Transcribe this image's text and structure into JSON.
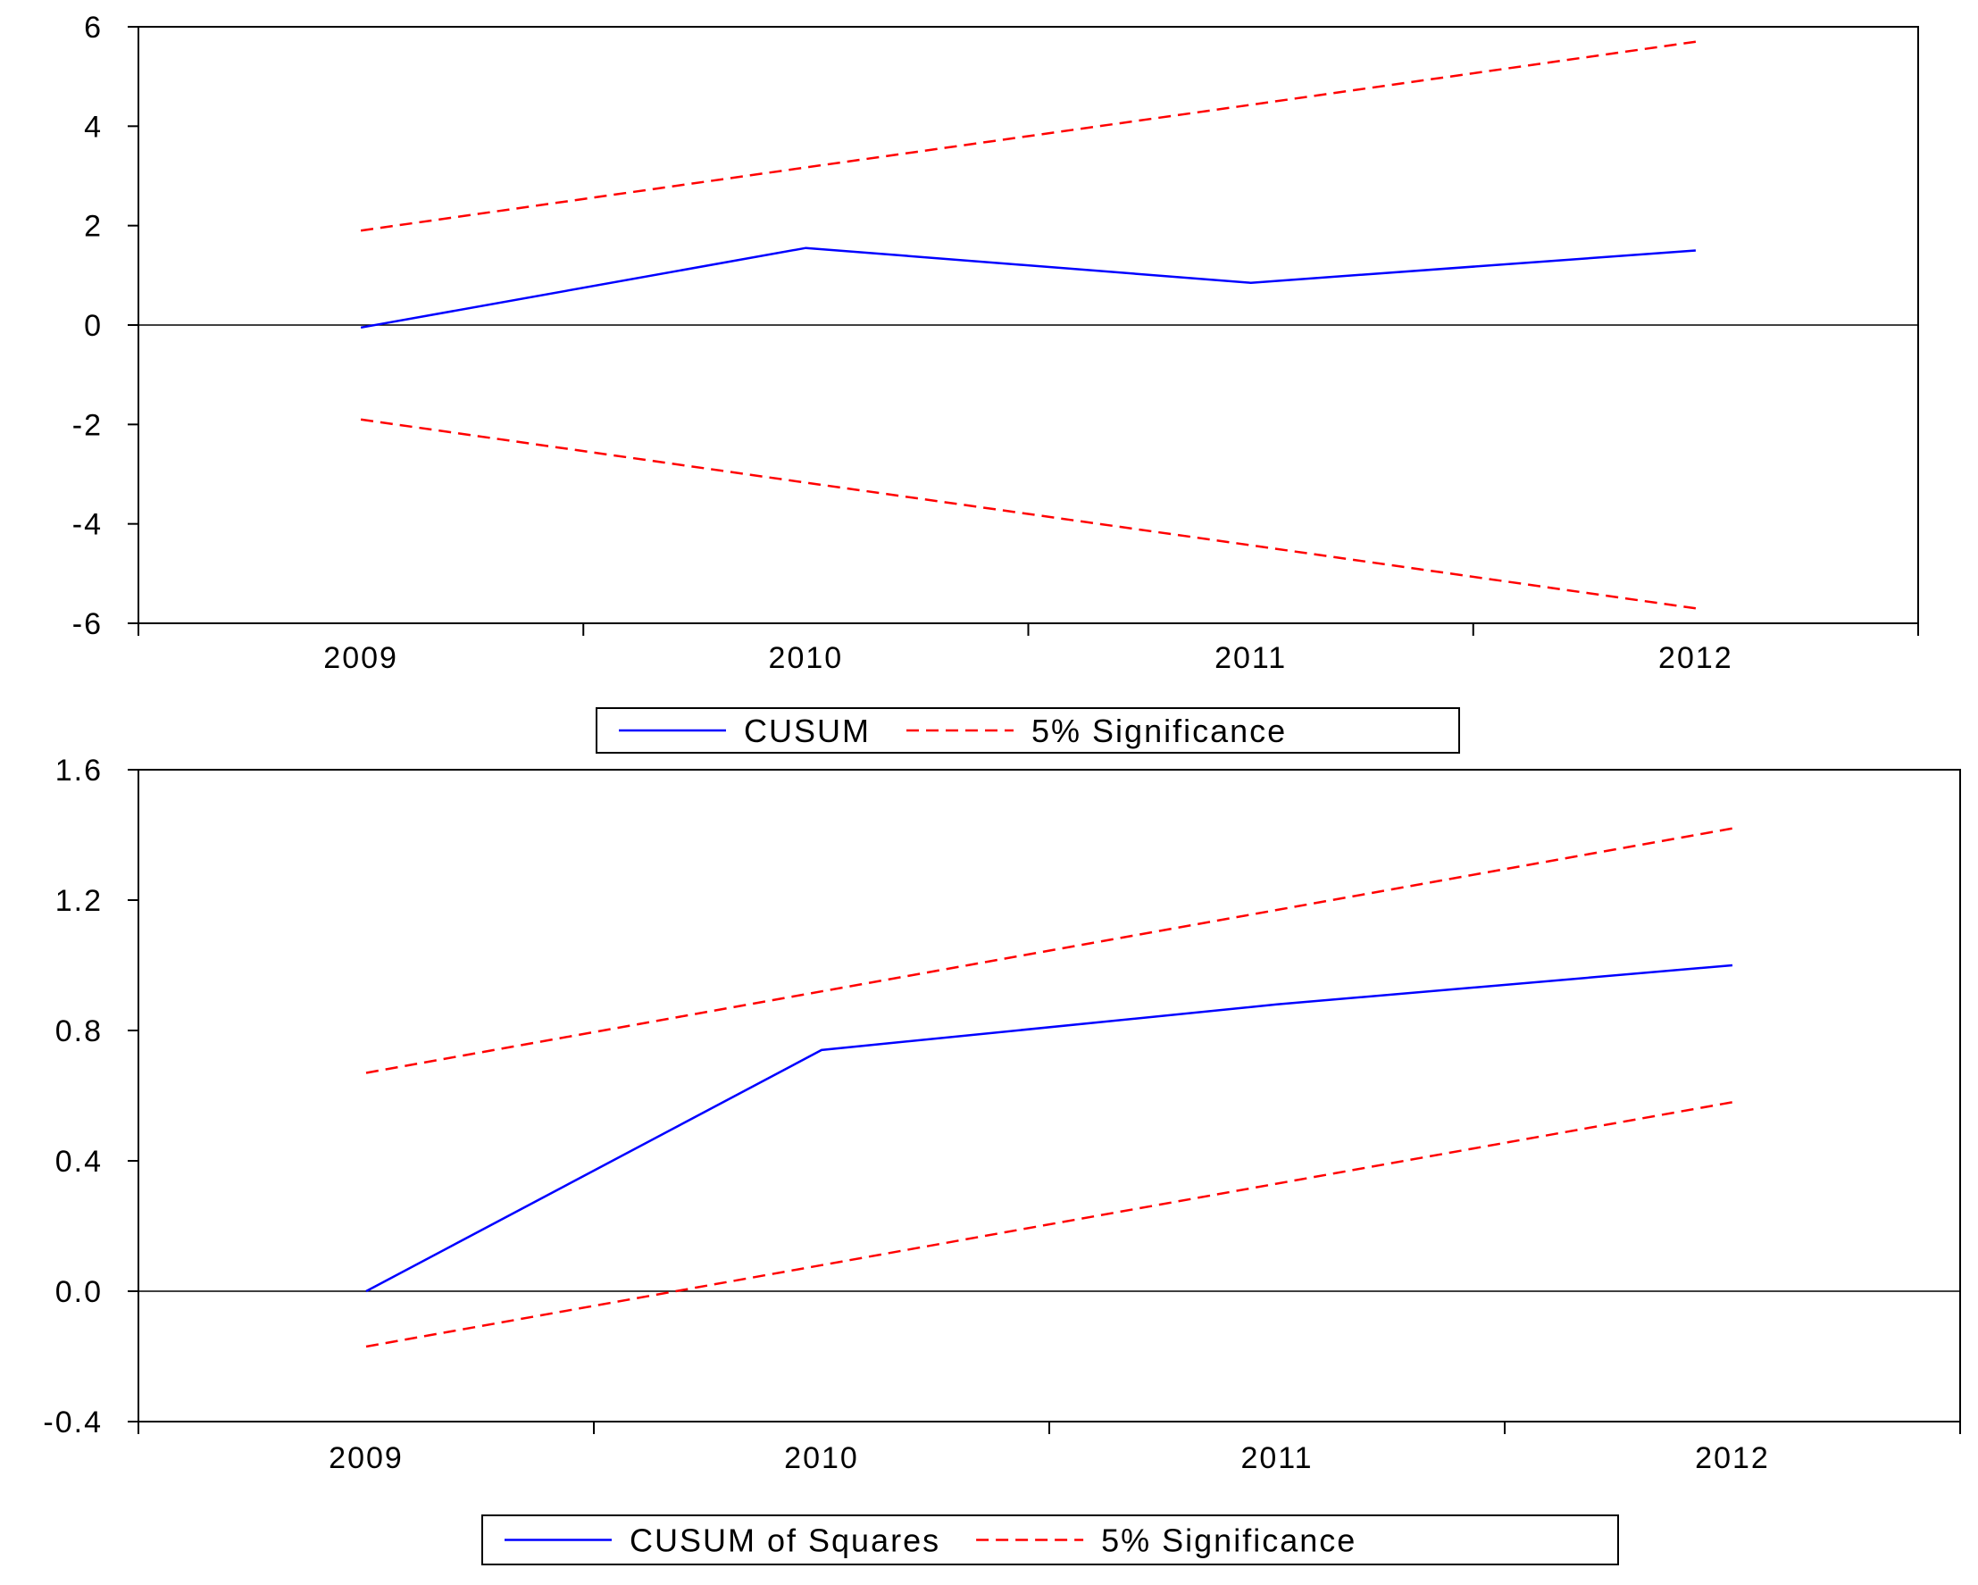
{
  "colors": {
    "cusum": "#0000ff",
    "significance": "#ff0000",
    "axis": "#000000",
    "background": "#ffffff"
  },
  "chart_data": [
    {
      "type": "line",
      "title": "",
      "xlabel": "",
      "ylabel": "",
      "categories": [
        "2009",
        "2010",
        "2011",
        "2012"
      ],
      "ylim": [
        -6,
        6
      ],
      "yticks": [
        6,
        4,
        2,
        0,
        -2,
        -4,
        -6
      ],
      "ytick_labels": [
        "6",
        "4",
        "2",
        "0",
        "-2",
        "-4",
        "-6"
      ],
      "zero_line": true,
      "grid": false,
      "legend_position": "bottom-center",
      "series": [
        {
          "name": "CUSUM",
          "values": [
            -0.05,
            1.55,
            0.85,
            1.5
          ],
          "color": "#0000ff",
          "style": "solid"
        },
        {
          "name": "5% Significance",
          "values": [
            1.9,
            3.17,
            4.43,
            5.7
          ],
          "color": "#ff0000",
          "style": "dashed"
        },
        {
          "name": "",
          "values": [
            -1.9,
            -3.17,
            -4.43,
            -5.7
          ],
          "color": "#ff0000",
          "style": "dashed"
        }
      ]
    },
    {
      "type": "line",
      "title": "",
      "xlabel": "",
      "ylabel": "",
      "categories": [
        "2009",
        "2010",
        "2011",
        "2012"
      ],
      "ylim": [
        -0.4,
        1.6
      ],
      "yticks": [
        1.6,
        1.2,
        0.8,
        0.4,
        0.0,
        -0.4
      ],
      "ytick_labels": [
        "1.6",
        "1.2",
        "0.8",
        "0.4",
        "0.0",
        "-0.4"
      ],
      "zero_line": true,
      "grid": false,
      "legend_position": "bottom-center",
      "series": [
        {
          "name": "CUSUM of Squares",
          "values": [
            0.0,
            0.74,
            0.88,
            1.0
          ],
          "color": "#0000ff",
          "style": "solid"
        },
        {
          "name": "5% Significance",
          "values": [
            0.67,
            0.92,
            1.17,
            1.42
          ],
          "color": "#ff0000",
          "style": "dashed"
        },
        {
          "name": "",
          "values": [
            -0.17,
            0.08,
            0.33,
            0.58
          ],
          "color": "#ff0000",
          "style": "dashed"
        }
      ]
    }
  ]
}
